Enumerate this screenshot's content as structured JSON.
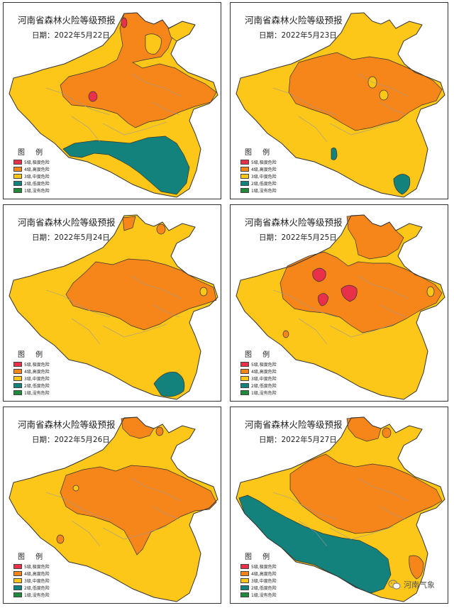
{
  "title": "河南省森林火险等级预报",
  "legend_title": "图 例",
  "legend": [
    {
      "label": "5级,极度危险",
      "color": "#e8304b"
    },
    {
      "label": "4级,高度危险",
      "color": "#f7861a"
    },
    {
      "label": "3级,中度危险",
      "color": "#fcc718"
    },
    {
      "label": "2级,低度危险",
      "color": "#14827c"
    },
    {
      "label": "1级,没有危险",
      "color": "#1f8a3a"
    }
  ],
  "panels": [
    {
      "date": "日期：2022年5月22日"
    },
    {
      "date": "日期：2022年5月23日"
    },
    {
      "date": "日期：2022年5月24日"
    },
    {
      "date": "日期：2022年5月25日"
    },
    {
      "date": "日期：2022年5月26日"
    },
    {
      "date": "日期：2022年5月27日"
    }
  ],
  "brand": {
    "text": "河南气象",
    "icon": "wechat-icon"
  }
}
